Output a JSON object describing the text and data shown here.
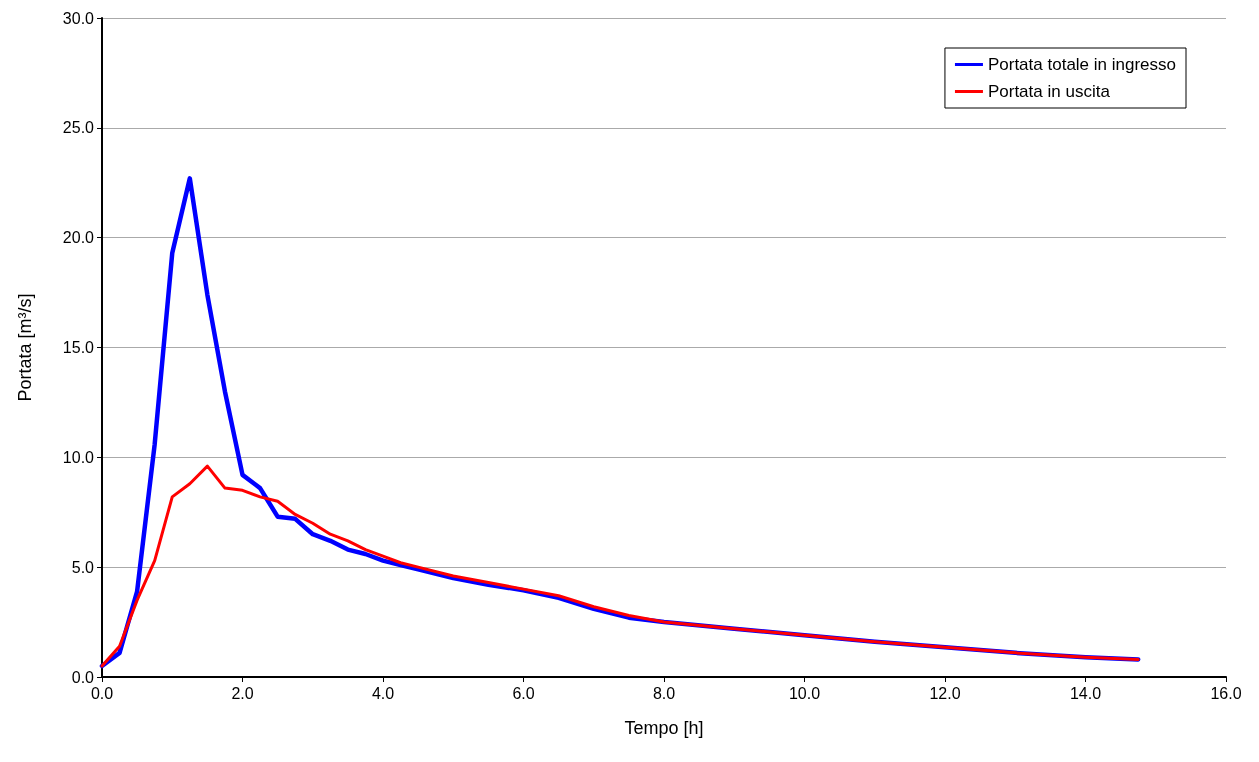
{
  "chart_data": {
    "type": "line",
    "xlabel": "Tempo [h]",
    "ylabel": "Portata [m³/s]",
    "xlim": [
      0,
      16
    ],
    "xticks": [
      {
        "value": 0,
        "label": "0.0"
      },
      {
        "value": 2,
        "label": "2.0"
      },
      {
        "value": 4,
        "label": "4.0"
      },
      {
        "value": 6,
        "label": "6.0"
      },
      {
        "value": 8,
        "label": "8.0"
      },
      {
        "value": 10,
        "label": "10.0"
      },
      {
        "value": 12,
        "label": "12.0"
      },
      {
        "value": 14,
        "label": "14.0"
      },
      {
        "value": 16,
        "label": "16.0"
      }
    ],
    "ylim": [
      0,
      30
    ],
    "yticks": [
      {
        "value": 0,
        "label": "0.0"
      },
      {
        "value": 5,
        "label": "5.0"
      },
      {
        "value": 10,
        "label": "10.0"
      },
      {
        "value": 15,
        "label": "15.0"
      },
      {
        "value": 20,
        "label": "20.0"
      },
      {
        "value": 25,
        "label": "25.0"
      },
      {
        "value": 30,
        "label": "30.0"
      }
    ],
    "grid": "y",
    "legend": "top right",
    "marker": "none",
    "line_style": "solid",
    "series": [
      {
        "name": "Portata totale in ingresso",
        "color": "#0000ff",
        "x": [
          0,
          0.25,
          0.5,
          0.75,
          1,
          1.25,
          1.5,
          1.75,
          2,
          2.25,
          2.5,
          2.75,
          3,
          3.25,
          3.5,
          3.75,
          4,
          4.25,
          4.5,
          5,
          5.5,
          6,
          6.5,
          7,
          7.5,
          8,
          9,
          10,
          11,
          12,
          13,
          14,
          14.75
        ],
        "values": [
          0.5,
          1.1,
          3.9,
          10.6,
          19.3,
          22.7,
          17.4,
          13.0,
          9.2,
          8.6,
          7.3,
          7.2,
          6.5,
          6.2,
          5.8,
          5.6,
          5.3,
          5.1,
          4.9,
          4.5,
          4.2,
          3.95,
          3.6,
          3.1,
          2.7,
          2.5,
          2.2,
          1.9,
          1.6,
          1.35,
          1.1,
          0.9,
          0.8
        ]
      },
      {
        "name": "Portata in uscita",
        "color": "#ff0000",
        "x": [
          0,
          0.25,
          0.5,
          0.75,
          1,
          1.25,
          1.5,
          1.75,
          2,
          2.25,
          2.5,
          2.75,
          3,
          3.25,
          3.5,
          3.75,
          4,
          4.25,
          4.5,
          5,
          5.5,
          6,
          6.5,
          7,
          7.5,
          8,
          9,
          10,
          11,
          12,
          13,
          14,
          14.75
        ],
        "values": [
          0.5,
          1.4,
          3.5,
          5.3,
          8.2,
          8.8,
          9.6,
          8.6,
          8.5,
          8.2,
          8.0,
          7.4,
          7.0,
          6.5,
          6.2,
          5.8,
          5.5,
          5.2,
          5.0,
          4.6,
          4.3,
          4.0,
          3.7,
          3.2,
          2.8,
          2.5,
          2.2,
          1.9,
          1.6,
          1.35,
          1.1,
          0.9,
          0.8
        ]
      }
    ]
  }
}
